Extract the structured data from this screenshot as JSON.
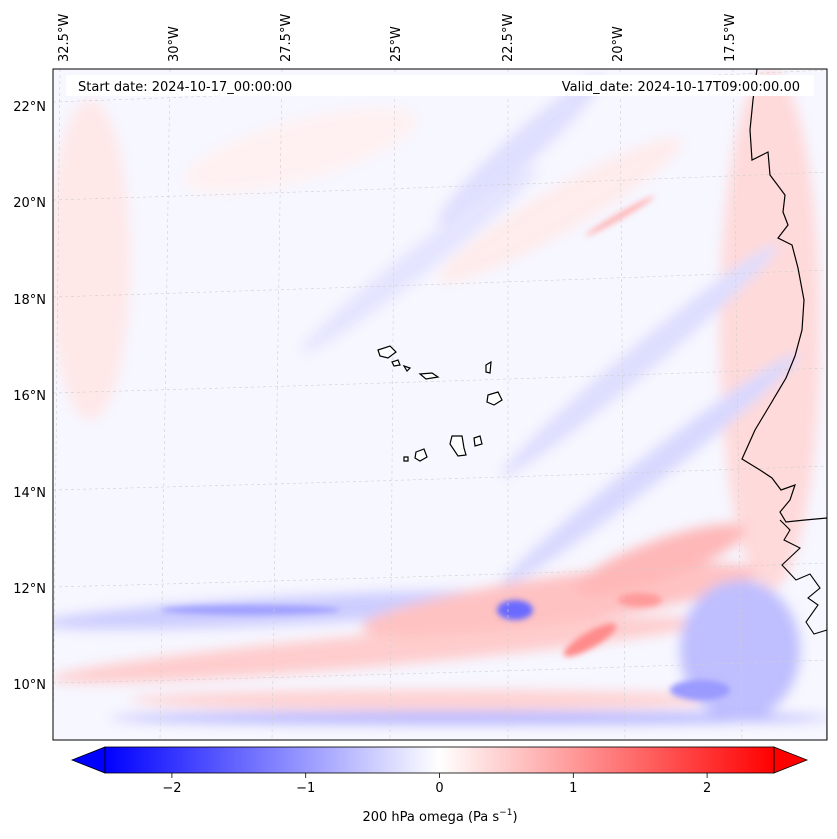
{
  "map": {
    "start_date_label": "Start date: 2024-10-17_00:00:00",
    "valid_date_label": "Valid_date: 2024-10-17T09:00:00.00",
    "lon_labels": [
      "32.5°W",
      "30°W",
      "27.5°W",
      "25°W",
      "22.5°W",
      "20°W",
      "17.5°W"
    ],
    "lat_labels": [
      "22°N",
      "20°N",
      "18°N",
      "16°N",
      "14°N",
      "12°N",
      "10°N"
    ],
    "field": "200 hPa omega",
    "units": "Pa s⁻¹"
  },
  "colorbar": {
    "label_main": "200 hPa omega (Pa s",
    "label_exp": "−1",
    "label_close": ")",
    "tick_labels": [
      "−2",
      "−1",
      "0",
      "1",
      "2"
    ],
    "tick_values": [
      -2,
      -1,
      0,
      1,
      2
    ],
    "range": [
      -2.5,
      2.5
    ],
    "extend": "both",
    "colormap": "bwr",
    "low_color": "#0000ff",
    "mid_color": "#ffffff",
    "high_color": "#ff0000"
  }
}
